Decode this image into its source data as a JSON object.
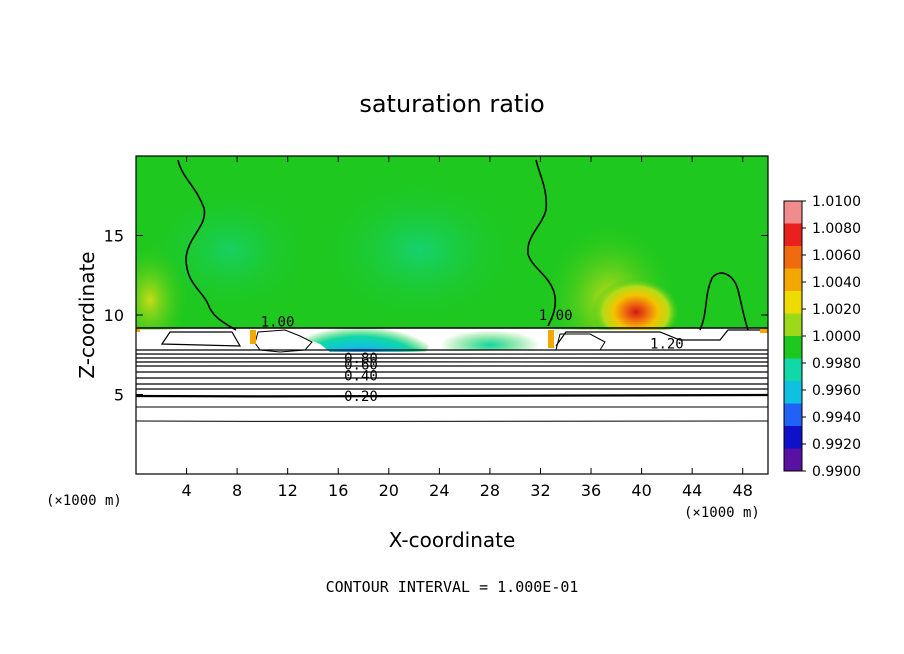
{
  "chart_data": {
    "type": "heatmap",
    "title": "saturation ratio",
    "xlabel": "X-coordinate",
    "ylabel": "Z-coordinate",
    "x_unit_label": "(×1000 m)",
    "x_unit_label_right": "(×1000 m)",
    "xlim": [
      0,
      50
    ],
    "ylim": [
      0,
      20
    ],
    "x_ticks": [
      4,
      8,
      12,
      16,
      20,
      24,
      28,
      32,
      36,
      40,
      44,
      48
    ],
    "y_ticks": [
      5,
      10,
      15
    ],
    "footer": "CONTOUR INTERVAL = 1.000E-01",
    "colorbar": {
      "labels": [
        "1.0100",
        "1.0080",
        "1.0060",
        "1.0040",
        "1.0020",
        "1.0000",
        "0.9980",
        "0.9960",
        "0.9940",
        "0.9920",
        "0.9900"
      ],
      "colors": [
        "#f08c8c",
        "#e8201e",
        "#f06a10",
        "#f2a800",
        "#eedc00",
        "#9ed81a",
        "#1ec81e",
        "#10d8a6",
        "#10c0e0",
        "#1f62f5",
        "#1010c8",
        "#5a10a0"
      ]
    },
    "contour_labels": [
      {
        "text": "1.00",
        "x": 11.2,
        "z": 9.6
      },
      {
        "text": "1.00",
        "x": 33.2,
        "z": 10.0
      },
      {
        "text": "1.20",
        "x": 42.0,
        "z": 8.2
      },
      {
        "text": "0.80",
        "x": 17.8,
        "z": 7.3
      },
      {
        "text": "0.60",
        "x": 17.8,
        "z": 6.9
      },
      {
        "text": "0.40",
        "x": 17.8,
        "z": 6.2
      },
      {
        "text": "0.20",
        "x": 17.8,
        "z": 4.9
      }
    ],
    "grid": false,
    "legend_position": "right colorbar"
  }
}
